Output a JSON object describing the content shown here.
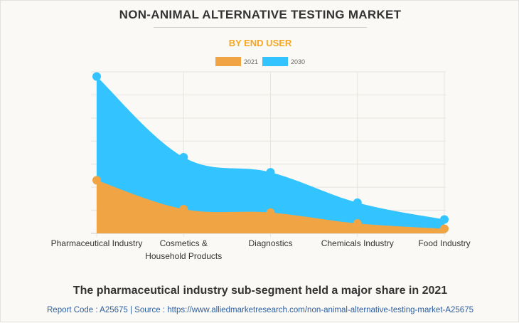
{
  "header": {
    "title": "NON-ANIMAL ALTERNATIVE TESTING MARKET",
    "subtitle": "BY END USER"
  },
  "legend": [
    {
      "label": "2021",
      "color": "#f0a444"
    },
    {
      "label": "2030",
      "color": "#33c4ff"
    }
  ],
  "chart_data": {
    "type": "area",
    "title": "NON-ANIMAL ALTERNATIVE TESTING MARKET",
    "subtitle": "BY END USER",
    "xlabel": "",
    "ylabel": "",
    "categories": [
      "Pharmaceutical Industry",
      "Cosmetics & Household Products",
      "Diagnostics",
      "Chemicals Industry",
      "Food Industry"
    ],
    "category_lines": [
      [
        "Pharmaceutical Industry"
      ],
      [
        "Cosmetics &",
        "Household Products"
      ],
      [
        "Diagnostics"
      ],
      [
        "Chemicals Industry"
      ],
      [
        "Food Industry"
      ]
    ],
    "series": [
      {
        "name": "2030",
        "color": "#33c4ff",
        "values": [
          6.8,
          3.3,
          2.65,
          1.33,
          0.6
        ]
      },
      {
        "name": "2021",
        "color": "#f0a444",
        "values": [
          2.3,
          1.05,
          0.9,
          0.43,
          0.2
        ]
      }
    ],
    "ylim": [
      0,
      7
    ],
    "y_ticks_shown": false,
    "grid": true,
    "legend_position": "top-center",
    "note": "Values in relative units (no y-axis labels shown)"
  },
  "footer": {
    "headline": "The pharmaceutical industry sub-segment held a major share in 2021",
    "source": "Report Code : A25675  |  Source : https://www.alliedmarketresearch.com/non-animal-alternative-testing-market-A25675"
  }
}
